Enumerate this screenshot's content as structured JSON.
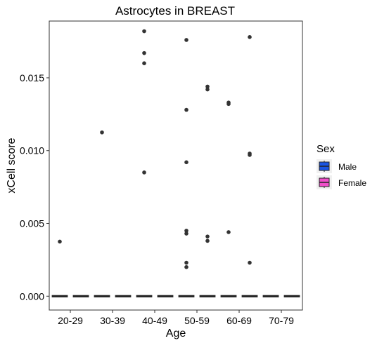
{
  "chart_data": {
    "type": "box",
    "title": "Astrocytes in BREAST",
    "xlabel": "Age",
    "ylabel": "xCell score",
    "categories": [
      "20-29",
      "30-39",
      "40-49",
      "50-59",
      "60-69",
      "70-79"
    ],
    "ylim": [
      -0.00095,
      0.0189
    ],
    "yticks": [
      0,
      0.005,
      0.01,
      0.015
    ],
    "ytick_labels": [
      "0.000",
      "0.005",
      "0.010",
      "0.015"
    ],
    "grid": false,
    "legend": {
      "title": "Sex",
      "position": "right",
      "entries": [
        {
          "name": "Male",
          "color": "#1a55e3"
        },
        {
          "name": "Female",
          "color": "#f04ec9"
        }
      ]
    },
    "series": [
      {
        "name": "Male",
        "color": "#1a55e3",
        "median": [
          0,
          0,
          0,
          0,
          0,
          0
        ],
        "outliers": [
          [
            0.00375
          ],
          [
            0.01125
          ],
          [
            0.0182,
            0.0167,
            0.016,
            0.0085
          ],
          [
            0.0176,
            0.0128,
            0.0092,
            0.0045,
            0.0043,
            0.0023,
            0.002
          ],
          [
            0.0133,
            0.0132,
            0.0044
          ],
          []
        ]
      },
      {
        "name": "Female",
        "color": "#f04ec9",
        "median": [
          0,
          0,
          0,
          0,
          0,
          0
        ],
        "outliers": [
          [],
          [],
          [],
          [
            0.0144,
            0.0142,
            0.0041,
            0.0038
          ],
          [
            0.0178,
            0.0098,
            0.0097,
            0.0023
          ],
          []
        ]
      }
    ]
  }
}
